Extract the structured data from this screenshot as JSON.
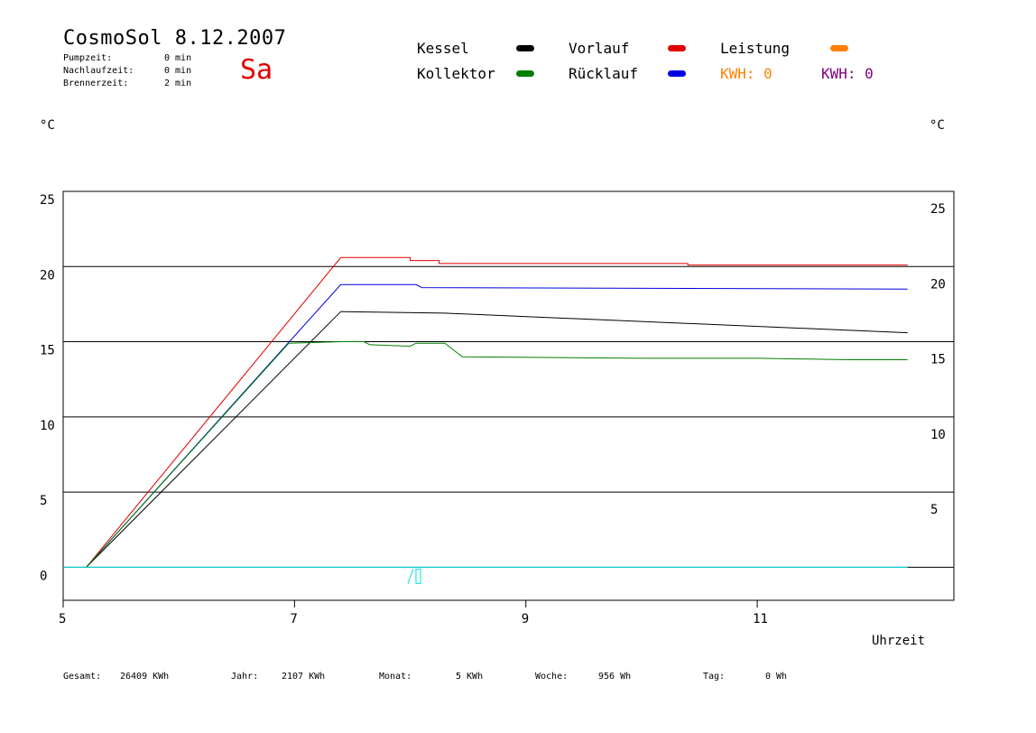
{
  "header": {
    "title": "CosmoSol 8.12.2007",
    "day": "Sa",
    "info": [
      {
        "label": "Pumpzeit:",
        "value": "0 min"
      },
      {
        "label": "Nachlaufzeit:",
        "value": "0 min"
      },
      {
        "label": "Brennerzeit:",
        "value": "2 min"
      }
    ]
  },
  "legend": {
    "items": [
      {
        "label": "Kessel",
        "color": "#000000"
      },
      {
        "label": "Kollektor",
        "color": "#008000"
      },
      {
        "label": "Vorlauf",
        "color": "#e00000"
      },
      {
        "label": "Rücklauf",
        "color": "#0000e0"
      },
      {
        "label": "Leistung",
        "color": "#ff8000"
      }
    ],
    "kwh": [
      {
        "label": "KWH: 0",
        "color": "#ff8000"
      },
      {
        "label": "KWH: 0",
        "color": "#800080"
      }
    ]
  },
  "footer": {
    "items": [
      {
        "label": "Gesamt:",
        "value": "26409 KWh"
      },
      {
        "label": "Jahr:",
        "value": "2107 KWh"
      },
      {
        "label": "Monat:",
        "value": "5 KWh"
      },
      {
        "label": "Woche:",
        "value": "956 Wh"
      },
      {
        "label": "Tag:",
        "value": "0 Wh"
      }
    ]
  },
  "chart_data": {
    "type": "line",
    "ylabel_left": "°C",
    "ylabel_right": "°C",
    "xlabel": "Uhrzeit",
    "xlim": [
      5,
      12.7
    ],
    "ylim": [
      -2.2,
      25
    ],
    "xticks": [
      5,
      7,
      9,
      11
    ],
    "yticks_left": [
      0,
      5,
      10,
      15,
      20,
      25
    ],
    "yticks_right": [
      5,
      10,
      15,
      20,
      25
    ],
    "grid_y": [
      0,
      5,
      10,
      15,
      20,
      25
    ],
    "series": [
      {
        "name": "Vorlauf",
        "color": "#e00000",
        "x": [
          5.2,
          7.4,
          8.0,
          8.0,
          8.25,
          8.25,
          10.4,
          10.4,
          12.3
        ],
        "y": [
          0,
          20.6,
          20.6,
          20.4,
          20.4,
          20.2,
          20.2,
          20.1,
          20.1
        ]
      },
      {
        "name": "Rücklauf",
        "color": "#0000e0",
        "x": [
          5.2,
          7.4,
          8.05,
          8.1,
          12.3
        ],
        "y": [
          0,
          18.8,
          18.8,
          18.6,
          18.5
        ]
      },
      {
        "name": "Kessel",
        "color": "#000000",
        "x": [
          5.2,
          7.4,
          8.3,
          12.3
        ],
        "y": [
          0,
          17.0,
          16.9,
          15.6
        ]
      },
      {
        "name": "Kollektor",
        "color": "#008000",
        "x": [
          5.2,
          6.95,
          7.4,
          7.6,
          7.65,
          8.0,
          8.05,
          8.3,
          8.45,
          10.0,
          11.0,
          11.8,
          12.3
        ],
        "y": [
          0,
          14.9,
          15.0,
          15.0,
          14.8,
          14.7,
          14.9,
          14.9,
          14.0,
          13.9,
          13.9,
          13.8,
          13.8
        ]
      },
      {
        "name": "Leistung",
        "color": "#00e0e0",
        "x": [
          5.0,
          12.3
        ],
        "y": [
          0,
          0
        ]
      }
    ]
  }
}
